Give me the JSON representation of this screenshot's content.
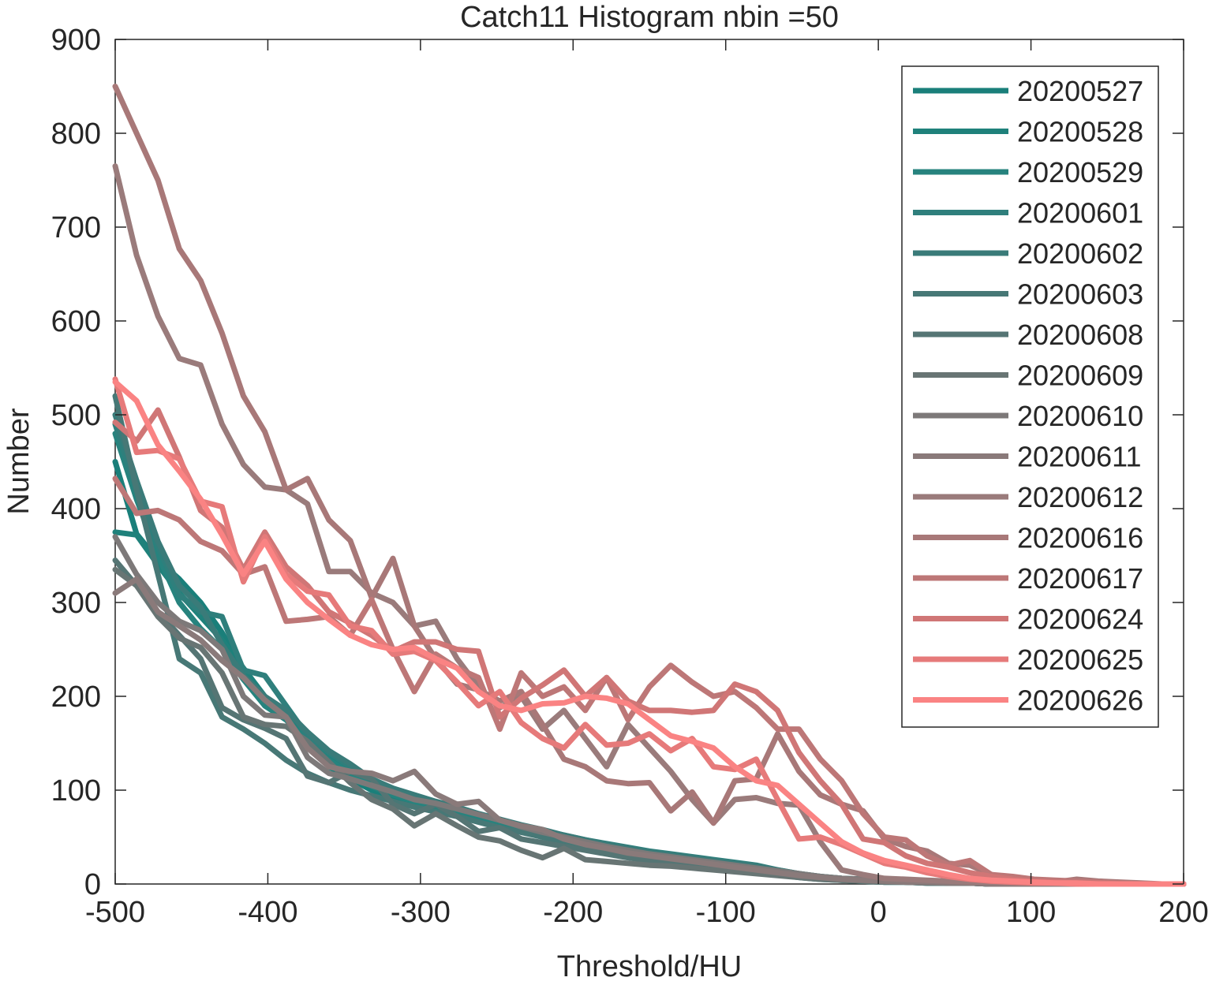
{
  "chart_data": {
    "type": "line",
    "title": "Catch11  Histogram nbin =50",
    "xlabel": "Threshold/HU",
    "ylabel": "Number",
    "xlim": [
      -500,
      200
    ],
    "ylim": [
      0,
      900
    ],
    "xticks": [
      -500,
      -400,
      -300,
      -200,
      -100,
      0,
      100,
      200
    ],
    "yticks": [
      0,
      100,
      200,
      300,
      400,
      500,
      600,
      700,
      800,
      900
    ],
    "grid": false,
    "legend_position": "top-right",
    "x": [
      -500,
      -486,
      -472,
      -458,
      -444,
      -430,
      -416,
      -402,
      -388,
      -374,
      -360,
      -346,
      -332,
      -318,
      -304,
      -290,
      -276,
      -262,
      -248,
      -234,
      -220,
      -206,
      -192,
      -178,
      -164,
      -150,
      -136,
      -122,
      -108,
      -94,
      -80,
      -66,
      -52,
      -38,
      -24,
      -10,
      4,
      18,
      32,
      46,
      60,
      74,
      88,
      102,
      116,
      130,
      144,
      158,
      172,
      186,
      200
    ],
    "series": [
      {
        "name": "20200527",
        "color": "#1a7f7a",
        "values": [
          450,
          373,
          345,
          325,
          300,
          268,
          225,
          190,
          175,
          152,
          125,
          112,
          100,
          93,
          86,
          80,
          74,
          68,
          62,
          56,
          50,
          46,
          42,
          38,
          34,
          31,
          28,
          25,
          22,
          18,
          14,
          10,
          7,
          5,
          4,
          3,
          2,
          2,
          1,
          1,
          1,
          0,
          0,
          0,
          0,
          0,
          0,
          0,
          0,
          0,
          0
        ]
      },
      {
        "name": "20200528",
        "color": "#1f817b",
        "values": [
          375,
          372,
          340,
          310,
          285,
          260,
          230,
          200,
          178,
          158,
          138,
          120,
          108,
          97,
          90,
          84,
          78,
          72,
          66,
          60,
          54,
          49,
          45,
          41,
          37,
          33,
          30,
          27,
          24,
          21,
          18,
          12,
          8,
          6,
          4,
          3,
          2,
          2,
          1,
          1,
          1,
          0,
          0,
          0,
          0,
          0,
          0,
          0,
          0,
          0,
          0
        ]
      },
      {
        "name": "20200529",
        "color": "#27837e",
        "values": [
          480,
          410,
          350,
          300,
          272,
          250,
          218,
          190,
          176,
          150,
          132,
          118,
          104,
          95,
          88,
          82,
          76,
          70,
          64,
          59,
          54,
          49,
          45,
          41,
          37,
          34,
          31,
          28,
          25,
          22,
          18,
          14,
          10,
          7,
          5,
          4,
          3,
          2,
          2,
          1,
          1,
          0,
          0,
          0,
          0,
          0,
          0,
          0,
          0,
          0,
          0
        ]
      },
      {
        "name": "20200601",
        "color": "#2f7f7c",
        "values": [
          490,
          420,
          360,
          308,
          290,
          285,
          228,
          222,
          190,
          158,
          140,
          125,
          112,
          100,
          92,
          86,
          80,
          74,
          68,
          62,
          57,
          52,
          47,
          43,
          39,
          35,
          32,
          29,
          26,
          23,
          20,
          15,
          11,
          8,
          6,
          5,
          4,
          3,
          2,
          2,
          1,
          1,
          0,
          0,
          0,
          0,
          0,
          0,
          0,
          0,
          0
        ]
      },
      {
        "name": "20200602",
        "color": "#3a7b79",
        "values": [
          500,
          430,
          365,
          318,
          295,
          255,
          222,
          200,
          185,
          162,
          142,
          128,
          112,
          102,
          95,
          88,
          82,
          75,
          69,
          63,
          58,
          52,
          47,
          42,
          38,
          34,
          31,
          28,
          25,
          22,
          19,
          15,
          11,
          8,
          6,
          5,
          4,
          3,
          2,
          2,
          1,
          1,
          0,
          0,
          0,
          0,
          0,
          0,
          0,
          0,
          0
        ]
      },
      {
        "name": "20200603",
        "color": "#477876",
        "values": [
          520,
          420,
          330,
          240,
          225,
          178,
          165,
          150,
          132,
          118,
          108,
          100,
          94,
          88,
          82,
          77,
          72,
          66,
          60,
          55,
          50,
          45,
          41,
          37,
          33,
          30,
          27,
          24,
          21,
          18,
          15,
          12,
          9,
          7,
          5,
          4,
          3,
          2,
          2,
          1,
          1,
          0,
          0,
          0,
          0,
          0,
          0,
          0,
          0,
          0,
          0
        ]
      },
      {
        "name": "20200608",
        "color": "#557574",
        "values": [
          345,
          318,
          290,
          265,
          240,
          188,
          175,
          166,
          155,
          115,
          108,
          120,
          112,
          85,
          75,
          85,
          72,
          56,
          60,
          48,
          44,
          40,
          36,
          32,
          28,
          25,
          22,
          20,
          18,
          15,
          13,
          10,
          8,
          6,
          5,
          4,
          3,
          2,
          2,
          1,
          1,
          0,
          0,
          0,
          0,
          0,
          0,
          0,
          0,
          0,
          0
        ]
      },
      {
        "name": "20200609",
        "color": "#687574",
        "values": [
          335,
          318,
          285,
          262,
          252,
          225,
          178,
          170,
          168,
          152,
          130,
          108,
          90,
          80,
          62,
          75,
          62,
          50,
          46,
          36,
          28,
          38,
          26,
          24,
          22,
          20,
          19,
          17,
          15,
          13,
          11,
          9,
          7,
          5,
          4,
          3,
          2,
          2,
          1,
          1,
          1,
          0,
          0,
          0,
          0,
          0,
          0,
          0,
          0,
          0,
          0
        ]
      },
      {
        "name": "20200610",
        "color": "#7d7979",
        "values": [
          370,
          330,
          300,
          280,
          270,
          250,
          200,
          180,
          178,
          135,
          118,
          112,
          105,
          98,
          90,
          86,
          80,
          74,
          68,
          61,
          55,
          50,
          45,
          40,
          36,
          32,
          29,
          26,
          23,
          20,
          17,
          14,
          11,
          8,
          6,
          5,
          4,
          3,
          2,
          2,
          1,
          1,
          0,
          0,
          0,
          0,
          0,
          0,
          0,
          0,
          0
        ]
      },
      {
        "name": "20200611",
        "color": "#8a7a7a",
        "values": [
          310,
          325,
          290,
          275,
          260,
          238,
          220,
          196,
          178,
          145,
          125,
          120,
          118,
          110,
          120,
          96,
          85,
          88,
          68,
          62,
          58,
          48,
          42,
          38,
          33,
          30,
          27,
          24,
          21,
          18,
          15,
          12,
          9,
          7,
          5,
          4,
          3,
          2,
          2,
          1,
          1,
          0,
          0,
          0,
          0,
          0,
          0,
          0,
          0,
          0,
          0
        ]
      },
      {
        "name": "20200612",
        "color": "#9a7b7b",
        "values": [
          765,
          670,
          605,
          560,
          553,
          490,
          447,
          423,
          420,
          405,
          333,
          333,
          310,
          300,
          275,
          280,
          240,
          210,
          188,
          200,
          165,
          185,
          155,
          125,
          170,
          145,
          120,
          90,
          65,
          90,
          92,
          86,
          84,
          45,
          15,
          10,
          6,
          5,
          4,
          3,
          2,
          2,
          1,
          1,
          1,
          1,
          0,
          0,
          0,
          0,
          0
        ]
      },
      {
        "name": "20200616",
        "color": "#a87878",
        "values": [
          850,
          800,
          750,
          677,
          643,
          587,
          520,
          482,
          420,
          432,
          388,
          366,
          305,
          347,
          275,
          240,
          213,
          207,
          195,
          205,
          170,
          133,
          125,
          110,
          107,
          108,
          78,
          98,
          65,
          110,
          112,
          160,
          120,
          95,
          85,
          78,
          48,
          40,
          35,
          22,
          20,
          10,
          5,
          4,
          2,
          5,
          3,
          2,
          1,
          0,
          0
        ]
      },
      {
        "name": "20200617",
        "color": "#bd7777",
        "values": [
          432,
          395,
          398,
          388,
          365,
          355,
          330,
          338,
          280,
          282,
          285,
          265,
          303,
          250,
          205,
          245,
          230,
          220,
          165,
          225,
          200,
          210,
          185,
          220,
          175,
          210,
          233,
          215,
          200,
          205,
          188,
          165,
          165,
          133,
          110,
          75,
          50,
          47,
          30,
          20,
          25,
          10,
          8,
          5,
          4,
          3,
          2,
          1,
          0,
          0,
          0
        ]
      },
      {
        "name": "20200624",
        "color": "#d07676",
        "values": [
          492,
          472,
          505,
          455,
          398,
          380,
          335,
          375,
          338,
          318,
          290,
          278,
          265,
          248,
          258,
          258,
          250,
          248,
          178,
          198,
          212,
          228,
          200,
          220,
          195,
          185,
          185,
          183,
          185,
          213,
          205,
          185,
          140,
          110,
          85,
          48,
          44,
          30,
          22,
          18,
          12,
          8,
          5,
          3,
          2,
          1,
          1,
          0,
          0,
          0,
          0
        ]
      },
      {
        "name": "20200625",
        "color": "#e67a7a",
        "values": [
          538,
          460,
          462,
          453,
          408,
          402,
          322,
          370,
          330,
          312,
          308,
          275,
          270,
          245,
          248,
          238,
          215,
          190,
          205,
          172,
          155,
          145,
          170,
          148,
          150,
          160,
          142,
          155,
          125,
          122,
          133,
          90,
          48,
          50,
          42,
          32,
          22,
          18,
          12,
          8,
          5,
          3,
          2,
          1,
          1,
          0,
          0,
          0,
          0,
          0,
          0
        ]
      },
      {
        "name": "20200626",
        "color": "#fa8383",
        "values": [
          535,
          515,
          468,
          440,
          410,
          372,
          330,
          365,
          325,
          300,
          282,
          265,
          255,
          250,
          252,
          240,
          230,
          205,
          190,
          185,
          192,
          193,
          200,
          198,
          192,
          175,
          158,
          152,
          145,
          125,
          110,
          105,
          85,
          65,
          45,
          33,
          25,
          20,
          15,
          10,
          6,
          4,
          3,
          2,
          1,
          1,
          0,
          0,
          0,
          0,
          0
        ]
      }
    ]
  }
}
